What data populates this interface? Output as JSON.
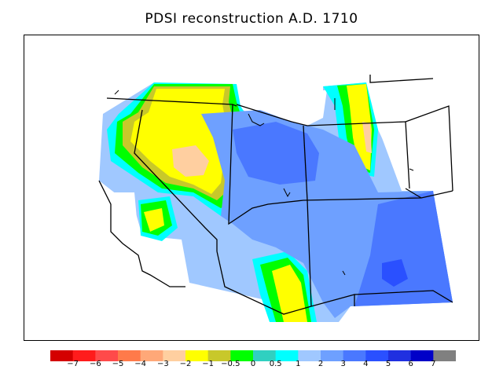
{
  "title": "PDSI reconstruction A.D. 1710",
  "legend": {
    "colors": [
      "#d40000",
      "#ff1c1c",
      "#ff4a4a",
      "#ff7a4a",
      "#ffa878",
      "#ffcfa0",
      "#ffff00",
      "#c8c82a",
      "#00ff00",
      "#30d0c0",
      "#00ffff",
      "#a0c8ff",
      "#6ea0ff",
      "#4a78ff",
      "#2a50ff",
      "#2030e0",
      "#0000c8",
      "#808080"
    ],
    "ticks": [
      "−7",
      "−6",
      "−5",
      "−4",
      "−3",
      "−2",
      "−1",
      "−0.5",
      "0",
      "0.5",
      "1",
      "2",
      "3",
      "4",
      "5",
      "6",
      "7"
    ]
  },
  "colors": {
    "yellow": "#ffff00",
    "green": "#00ff00",
    "cyan": "#00ffff",
    "light_blue": "#a0c8ff",
    "mid_blue": "#6ea0ff",
    "blue": "#4a78ff",
    "deep_blue": "#2a50ff",
    "peach": "#ffcfa0",
    "olive": "#c8c82a"
  }
}
